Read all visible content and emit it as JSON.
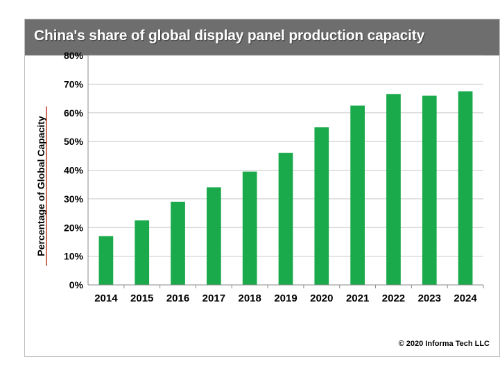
{
  "chart_data": {
    "type": "bar",
    "title": "China's share of global display panel production capacity",
    "xlabel": "",
    "ylabel": "Percentage of Global Capacity",
    "categories": [
      "2014",
      "2015",
      "2016",
      "2017",
      "2018",
      "2019",
      "2020",
      "2021",
      "2022",
      "2023",
      "2024"
    ],
    "values": [
      17,
      22.5,
      29,
      34,
      39.5,
      46,
      55,
      62.5,
      66.5,
      66,
      67.5
    ],
    "ylim": [
      0,
      80
    ],
    "yticks": [
      0,
      10,
      20,
      30,
      40,
      50,
      60,
      70,
      80
    ],
    "ytick_labels": [
      "0%",
      "10%",
      "20%",
      "30%",
      "40%",
      "50%",
      "60%",
      "70%",
      "80%"
    ],
    "grid": true,
    "legend": "none",
    "bar_color": "#1aaa4b"
  },
  "footer": {
    "copyright": "© 2020 Informa  Tech LLC"
  },
  "colors": {
    "title_bar": "#6e6e6e",
    "grid": "#c8c8c8",
    "ylabel_underline": "#c0392b"
  }
}
